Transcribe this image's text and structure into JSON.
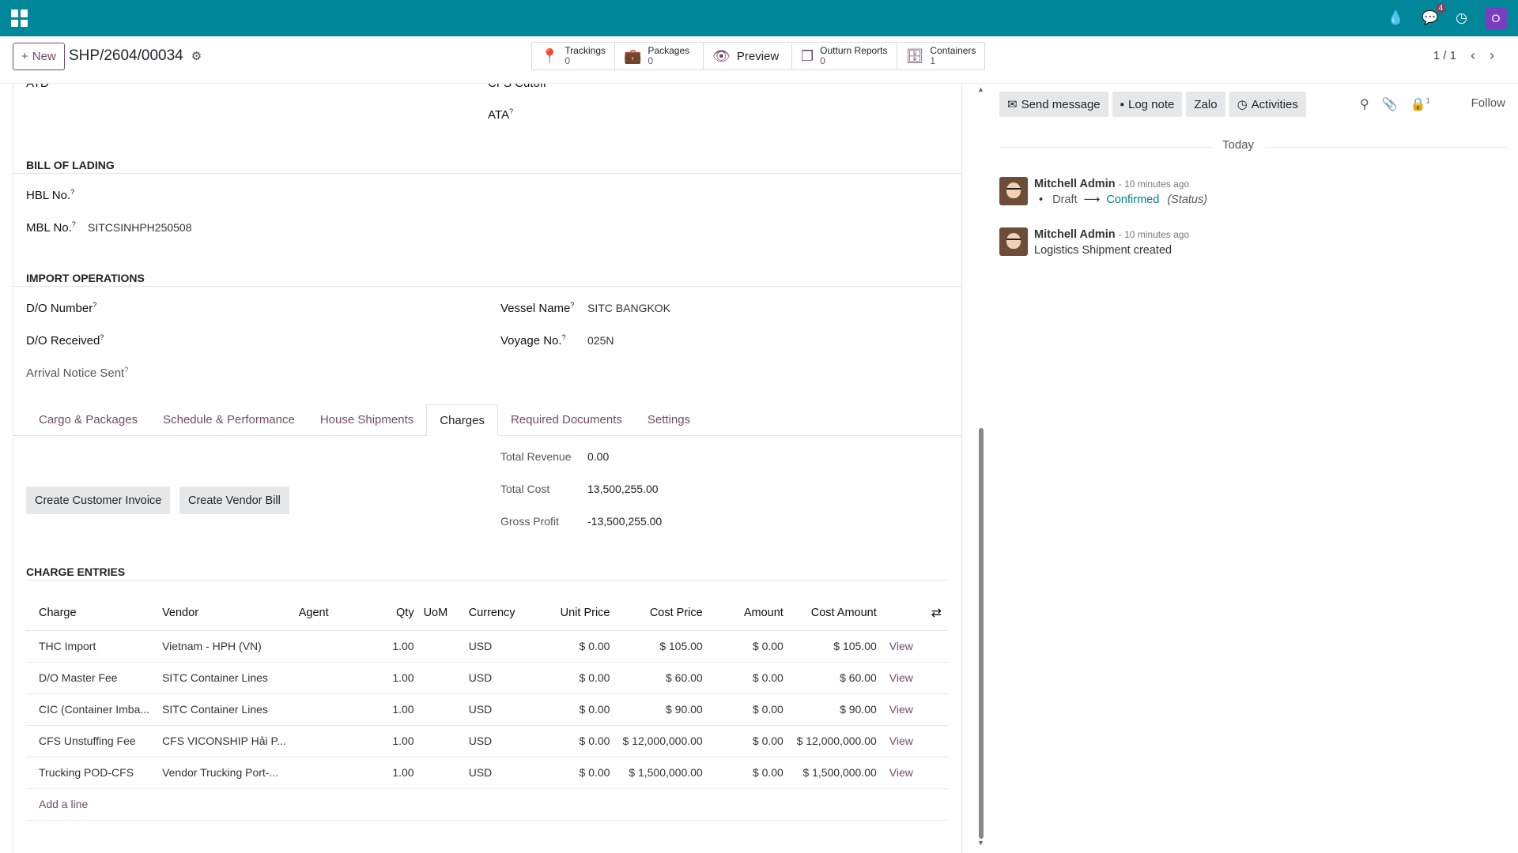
{
  "topbar": {
    "messages_badge": "4",
    "user_initial": "O"
  },
  "control": {
    "new_label": "New",
    "record_title": "SHP/2604/00034",
    "smart_buttons": [
      {
        "label": "Trackings",
        "count": "0",
        "icon": "map-pin-icon"
      },
      {
        "label": "Packages",
        "count": "0",
        "icon": "briefcase-icon"
      },
      {
        "label": "Preview",
        "icon": "eye-icon"
      },
      {
        "label": "Outturn Reports",
        "count": "0",
        "icon": "copy-icon"
      },
      {
        "label": "Containers",
        "count": "1",
        "icon": "archive-icon"
      }
    ],
    "pager": "1 / 1"
  },
  "form": {
    "atd_label": "ATD",
    "cfs_cutoff_label": "CFS Cutoff",
    "ata_label": "ATA",
    "bill_of_lading_title": "BILL OF LADING",
    "hbl_label": "HBL No.",
    "mbl_label": "MBL No.",
    "mbl_value": "SITCSINHPH250508",
    "import_ops_title": "IMPORT OPERATIONS",
    "do_number_label": "D/O Number",
    "do_received_label": "D/O Received",
    "arrival_notice_label": "Arrival Notice Sent",
    "vessel_label": "Vessel Name",
    "vessel_value": "SITC BANGKOK",
    "voyage_label": "Voyage No.",
    "voyage_value": "025N",
    "help_mark": "?"
  },
  "tabs": [
    "Cargo & Packages",
    "Schedule & Performance",
    "House Shipments",
    "Charges",
    "Required Documents",
    "Settings"
  ],
  "charges": {
    "total_revenue_label": "Total Revenue",
    "total_revenue": "0.00",
    "total_cost_label": "Total Cost",
    "total_cost": "13,500,255.00",
    "gross_profit_label": "Gross Profit",
    "gross_profit": "-13,500,255.00",
    "create_invoice_label": "Create Customer Invoice",
    "create_bill_label": "Create Vendor Bill",
    "entries_title": "CHARGE ENTRIES",
    "columns": [
      "Charge",
      "Vendor",
      "Agent",
      "Qty",
      "UoM",
      "Currency",
      "Unit Price",
      "Cost Price",
      "Amount",
      "Cost Amount"
    ],
    "rows": [
      {
        "charge": "THC Import",
        "vendor": "Vietnam - HPH (VN)",
        "agent": "",
        "qty": "1.00",
        "uom": "",
        "currency": "USD",
        "unit_price": "$ 0.00",
        "cost_price": "$ 105.00",
        "amount": "$ 0.00",
        "cost_amount": "$ 105.00",
        "action": "View"
      },
      {
        "charge": "D/O Master Fee",
        "vendor": "SITC Container Lines",
        "agent": "",
        "qty": "1.00",
        "uom": "",
        "currency": "USD",
        "unit_price": "$ 0.00",
        "cost_price": "$ 60.00",
        "amount": "$ 0.00",
        "cost_amount": "$ 60.00",
        "action": "View"
      },
      {
        "charge": "CIC (Container Imba...",
        "vendor": "SITC Container Lines",
        "agent": "",
        "qty": "1.00",
        "uom": "",
        "currency": "USD",
        "unit_price": "$ 0.00",
        "cost_price": "$ 90.00",
        "amount": "$ 0.00",
        "cost_amount": "$ 90.00",
        "action": "View"
      },
      {
        "charge": "CFS Unstuffing Fee",
        "vendor": "CFS VICONSHIP Hải P...",
        "agent": "",
        "qty": "1.00",
        "uom": "",
        "currency": "USD",
        "unit_price": "$ 0.00",
        "cost_price": "$ 12,000,000.00",
        "amount": "$ 0.00",
        "cost_amount": "$ 12,000,000.00",
        "action": "View"
      },
      {
        "charge": "Trucking POD-CFS",
        "vendor": "Vendor Trucking Port-...",
        "agent": "",
        "qty": "1.00",
        "uom": "",
        "currency": "USD",
        "unit_price": "$ 0.00",
        "cost_price": "$ 1,500,000.00",
        "amount": "$ 0.00",
        "cost_amount": "$ 1,500,000.00",
        "action": "View"
      }
    ],
    "add_line_label": "Add a line"
  },
  "chatter": {
    "send_message_label": "Send message",
    "log_note_label": "Log note",
    "zalo_label": "Zalo",
    "activities_label": "Activities",
    "followers_count": "1",
    "follow_label": "Follow",
    "today_label": "Today",
    "messages": [
      {
        "author": "Mitchell Admin",
        "time": "- 10 minutes ago",
        "old": "Draft",
        "new": "Confirmed",
        "field": "(Status)"
      },
      {
        "author": "Mitchell Admin",
        "time": "- 10 minutes ago",
        "body": "Logistics Shipment created"
      }
    ]
  }
}
